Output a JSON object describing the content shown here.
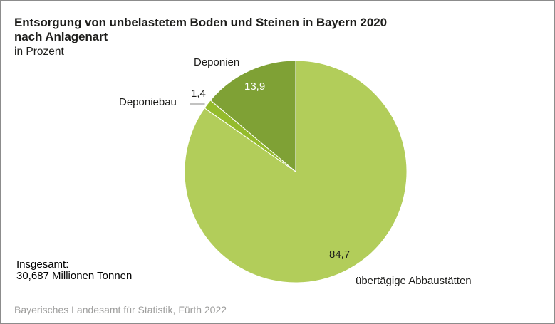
{
  "chart_data": {
    "type": "pie",
    "title_line1": "Entsorgung von unbelastetem Boden und Steinen in Bayern 2020",
    "title_line2": "nach Anlagenart",
    "subtitle": "in Prozent",
    "unit": "Prozent",
    "slices": [
      {
        "name": "übertägige Abbaustätten",
        "value": 84.7,
        "value_label": "84,7",
        "color": "#b2cd5a"
      },
      {
        "name": "Deponiebau",
        "value": 1.4,
        "value_label": "1,4",
        "color": "#94bb2c"
      },
      {
        "name": "Deponien",
        "value": 13.9,
        "value_label": "13,9",
        "color": "#7fa135"
      }
    ],
    "start": "12 o'clock",
    "direction": "clockwise",
    "total_label": "Insgesamt:",
    "total_value": "30,687 Millionen Tonnen"
  },
  "source": "Bayerisches Landesamt für Statistik, Fürth 2022"
}
